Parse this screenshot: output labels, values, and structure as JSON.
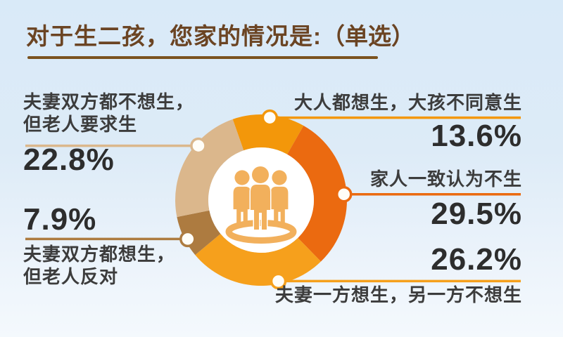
{
  "header": {
    "title": "对于生二孩，您家的情况是:",
    "subtitle": "（单选）"
  },
  "chart_data": {
    "type": "pie",
    "donut": true,
    "title": "对于生二孩，您家的情况是:（单选）",
    "start_angle": 109.3,
    "legend_position": "callouts",
    "center_icon": "family-people-icon",
    "icon_color": "#F2B05C",
    "marker_fill": "#FFFDF7",
    "slices": [
      {
        "label": "大人都想生，大孩不同意生",
        "value": 13.6,
        "pct_label": "13.6%",
        "color": "#F3970A",
        "callout": {
          "angle": 84,
          "side": "right"
        }
      },
      {
        "label": "家人一致认为不生",
        "value": 29.5,
        "pct_label": "29.5%",
        "color": "#EB6A10",
        "callout": {
          "angle": 4,
          "side": "right"
        }
      },
      {
        "label": "夫妻一方想生，另一方不想生",
        "value": 26.2,
        "pct_label": "26.2%",
        "color": "#F6A01C",
        "callout": {
          "angle": -78,
          "side": "right"
        }
      },
      {
        "label": "夫妻双方都想生，但老人反对",
        "label_lines": [
          "夫妻双方都想生，",
          "但老人反对"
        ],
        "value": 7.9,
        "pct_label": "7.9%",
        "color": "#AD7B40",
        "callout": {
          "angle": -152,
          "side": "left"
        }
      },
      {
        "label": "夫妻双方都不想生，但老人要求生",
        "label_lines": [
          "夫妻双方都不想生，",
          "但老人要求生"
        ],
        "value": 22.8,
        "pct_label": "22.8%",
        "color": "#DBB78C",
        "callout": {
          "angle": 139,
          "side": "left"
        }
      }
    ]
  }
}
